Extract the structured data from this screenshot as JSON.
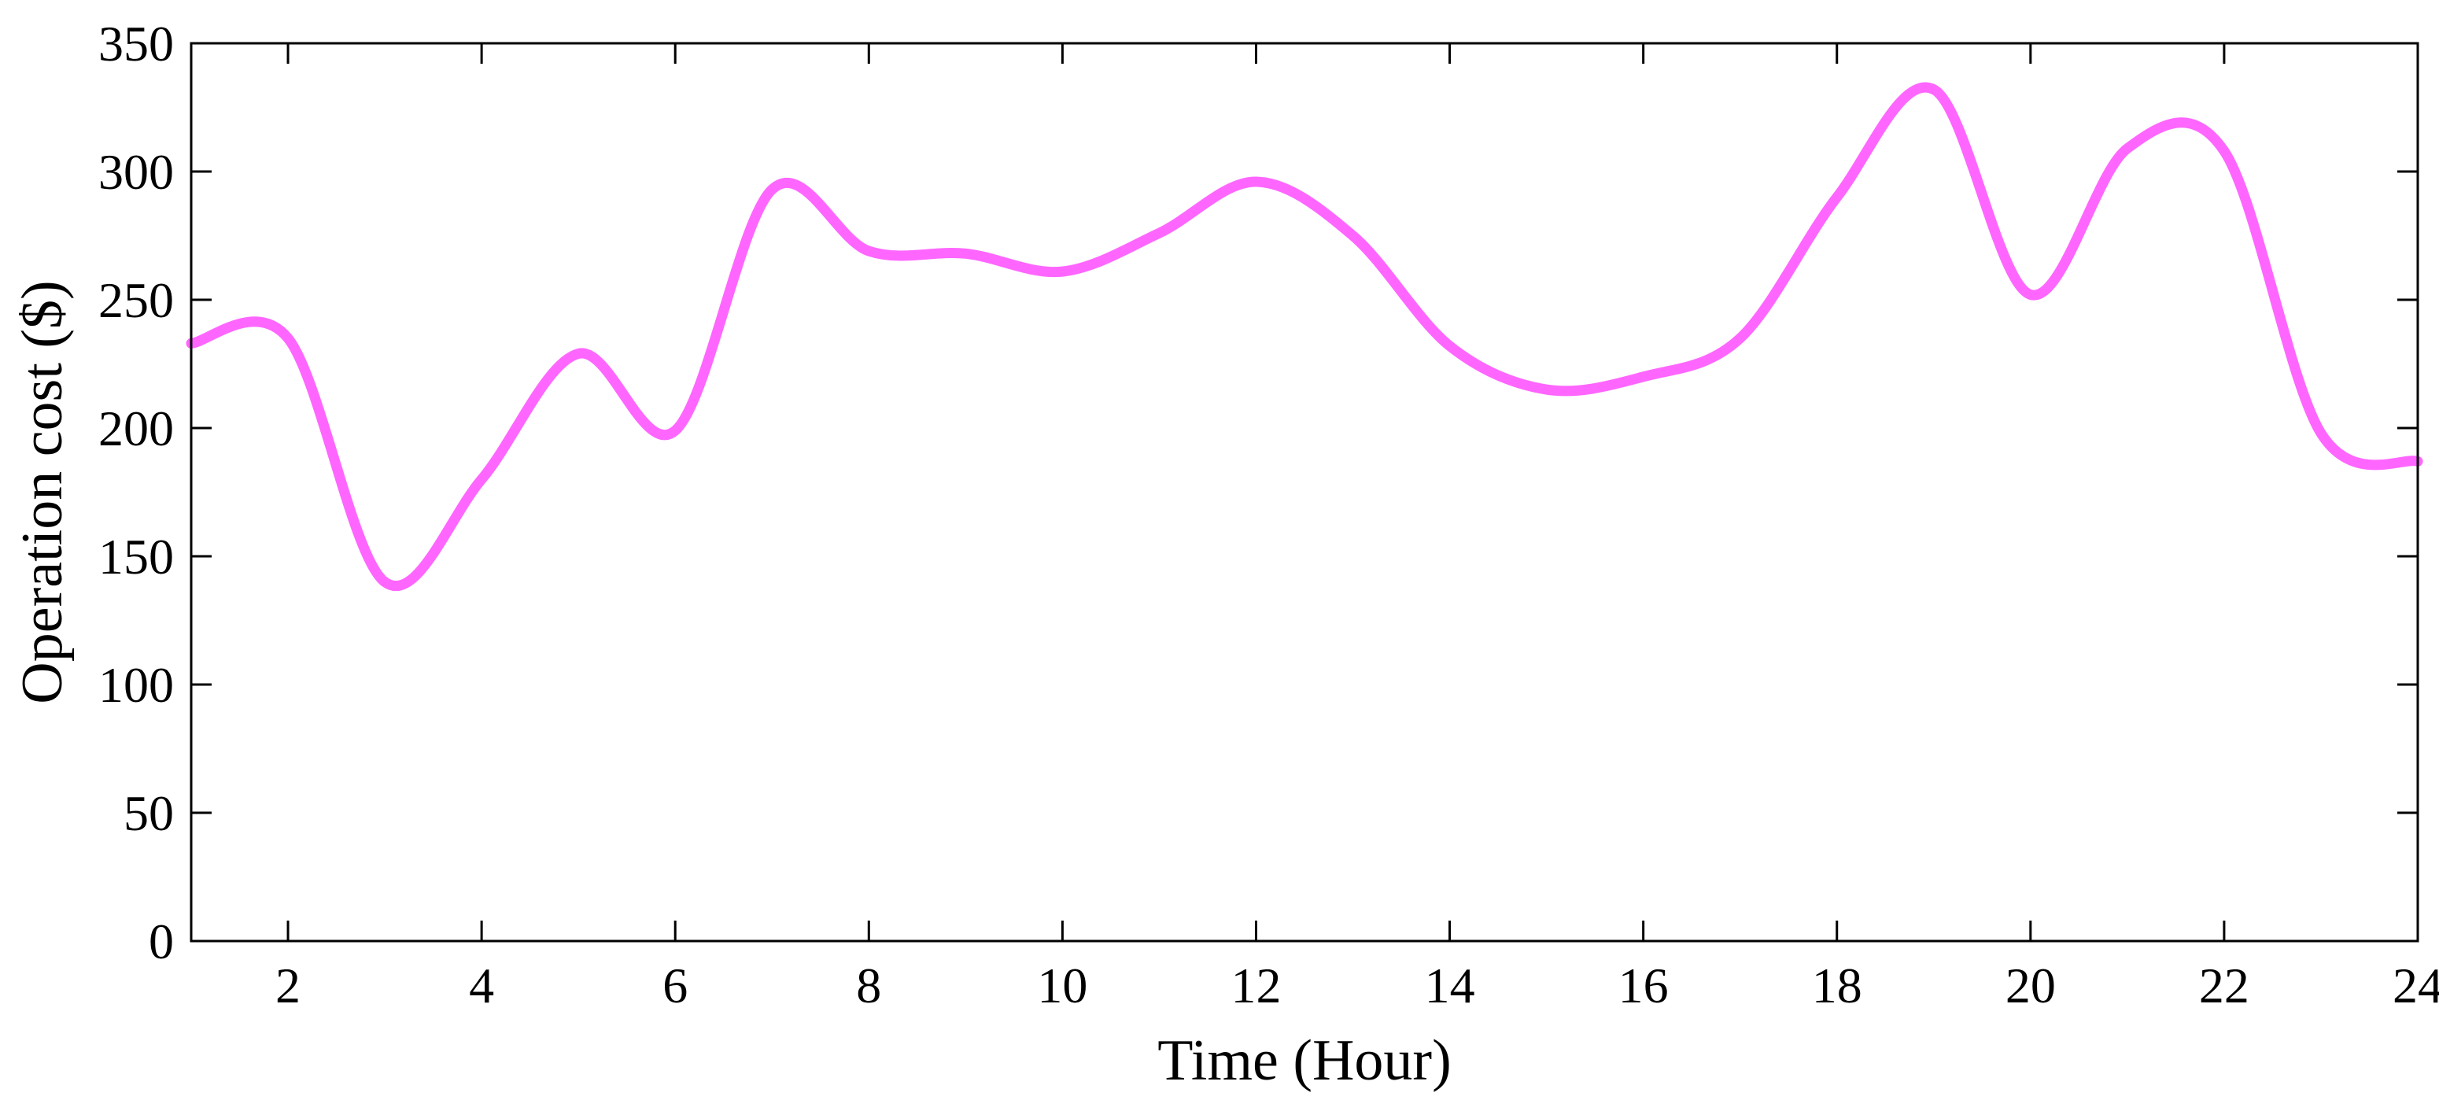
{
  "chart_data": {
    "type": "line",
    "title": "",
    "xlabel": "Time (Hour)",
    "ylabel": "Operation cost ($)",
    "xlim": [
      1,
      24
    ],
    "ylim": [
      0,
      350
    ],
    "grid": false,
    "x_ticks": [
      2,
      4,
      6,
      8,
      10,
      12,
      14,
      16,
      18,
      20,
      22,
      24
    ],
    "y_ticks": [
      0,
      50,
      100,
      150,
      200,
      250,
      300,
      350
    ],
    "series": [
      {
        "color": "#ff66ff",
        "x": [
          1,
          2,
          3,
          4,
          5,
          6,
          7,
          8,
          9,
          10,
          11,
          12,
          13,
          14,
          15,
          16,
          17,
          18,
          19,
          20,
          21,
          22,
          23,
          24
        ],
        "y": [
          233,
          235,
          140,
          180,
          229,
          199,
          293,
          269,
          268,
          261,
          276,
          296,
          275,
          232,
          215,
          220,
          235,
          290,
          332,
          252,
          309,
          308,
          198,
          187
        ]
      }
    ]
  }
}
